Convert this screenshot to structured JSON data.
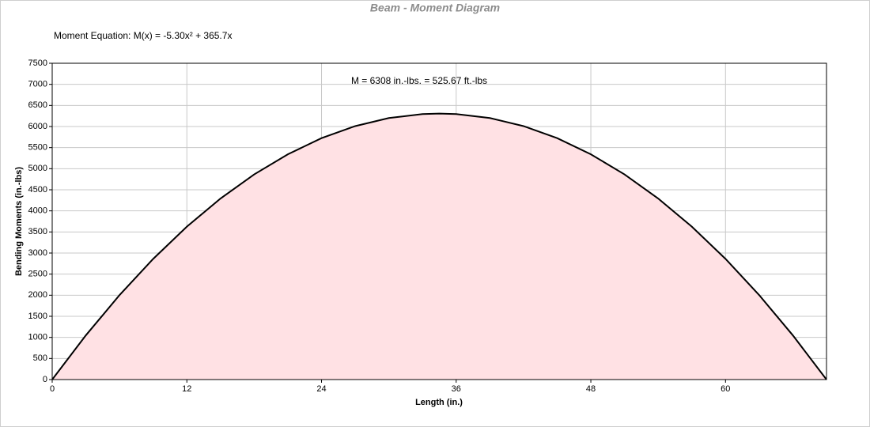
{
  "chart_data": {
    "type": "area",
    "title": "Beam - Moment Diagram",
    "equation": "Moment Equation:  M(x) = -5.30x² + 365.7x",
    "annotation": "M = 6308 in.-lbs. = 525.67 ft.-lbs",
    "x_label": "Length (in.)",
    "y_label": "Bending Moments (in.-lbs)",
    "x": [
      0,
      3,
      6,
      9,
      12,
      15,
      18,
      21,
      24,
      27,
      30,
      33,
      34.5,
      36,
      39,
      42,
      45,
      48,
      51,
      54,
      57,
      60,
      63,
      66,
      69
    ],
    "values": [
      0,
      1049,
      2003,
      2862,
      3625,
      4293,
      4865,
      5342,
      5724,
      6010,
      6201,
      6296,
      6308,
      6296,
      6201,
      6010,
      5724,
      5342,
      4865,
      4293,
      3625,
      2862,
      2003,
      1049,
      0
    ],
    "line_color": "#000000",
    "fill_color": "#ffe1e4",
    "xlim": [
      0,
      69
    ],
    "ylim": [
      0,
      7500
    ],
    "xticks": [
      0,
      12,
      24,
      36,
      48,
      60
    ],
    "yticks": [
      0,
      500,
      1000,
      1500,
      2000,
      2500,
      3000,
      3500,
      4000,
      4500,
      5000,
      5500,
      6000,
      6500,
      7000,
      7500
    ],
    "grid": true
  }
}
